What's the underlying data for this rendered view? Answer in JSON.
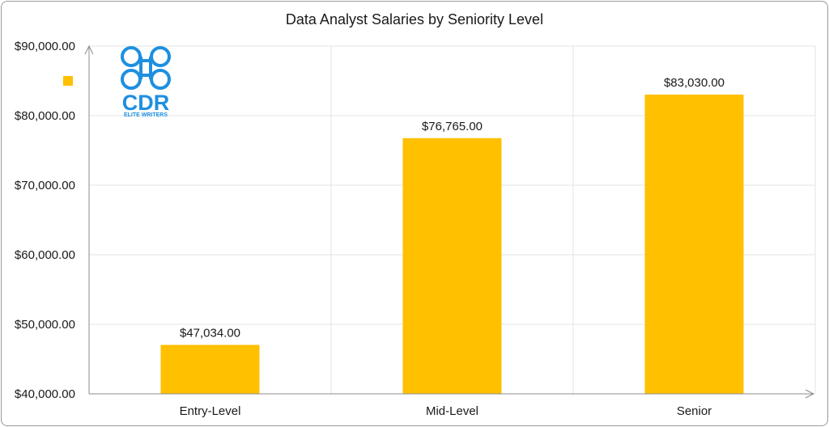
{
  "chart_data": {
    "type": "bar",
    "title": "Data Analyst Salaries by Seniority Level",
    "categories": [
      "Entry-Level",
      "Mid-Level",
      "Senior"
    ],
    "values": [
      47034,
      76765,
      83030
    ],
    "data_labels": [
      "$47,034.00",
      "$76,765.00",
      "$83,030.00"
    ],
    "ylim": [
      40000,
      90000
    ],
    "yticks": [
      40000,
      50000,
      60000,
      70000,
      80000,
      90000
    ],
    "ytick_labels": [
      "$40,000.00",
      "$50,000.00",
      "$60,000.00",
      "$70,000.00",
      "$80,000.00",
      "$90,000.00"
    ],
    "xlabel": "",
    "ylabel": "",
    "grid": true,
    "legend": "top-left",
    "bar_color": "#FFC000"
  },
  "logo": {
    "icon": "cdr-elite-writers-logo",
    "main_text": "CDR",
    "sub_text": "ELITE WRITERS",
    "color": "#1E8FE0"
  }
}
